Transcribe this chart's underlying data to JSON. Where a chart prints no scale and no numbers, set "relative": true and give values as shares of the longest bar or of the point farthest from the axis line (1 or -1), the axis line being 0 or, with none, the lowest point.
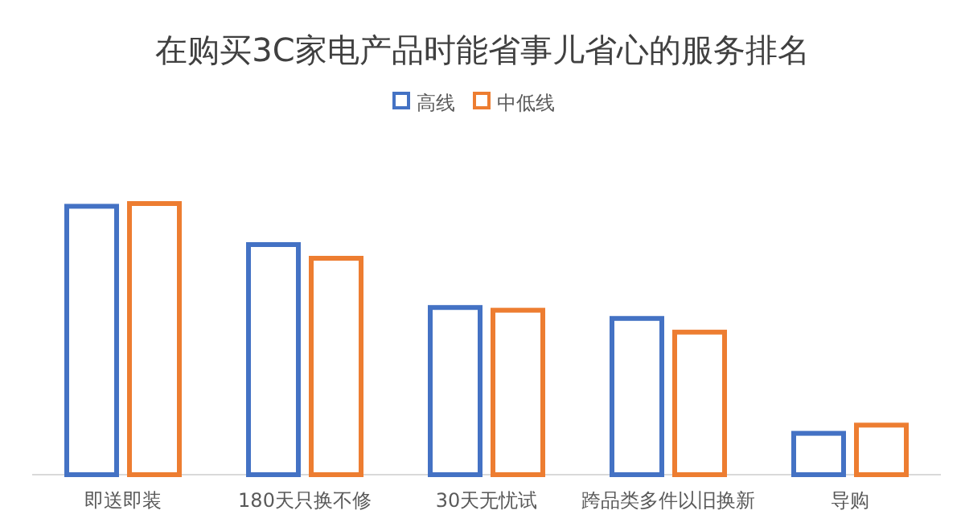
{
  "chart_data": {
    "type": "bar",
    "title": "在购买3C家电产品时能省事儿省心的服务排名",
    "relative": true,
    "legend": "top",
    "categories": [
      "即送即装",
      "180天只换不修",
      "30天无忧试",
      "跨品类多件以旧换新",
      "导购"
    ],
    "series": [
      {
        "name": "高线",
        "color": "#4472c4",
        "values": [
          0.99,
          0.85,
          0.62,
          0.58,
          0.16
        ]
      },
      {
        "name": "中低线",
        "color": "#ed7d31",
        "values": [
          1,
          0.8,
          0.61,
          0.53,
          0.19
        ]
      }
    ]
  }
}
